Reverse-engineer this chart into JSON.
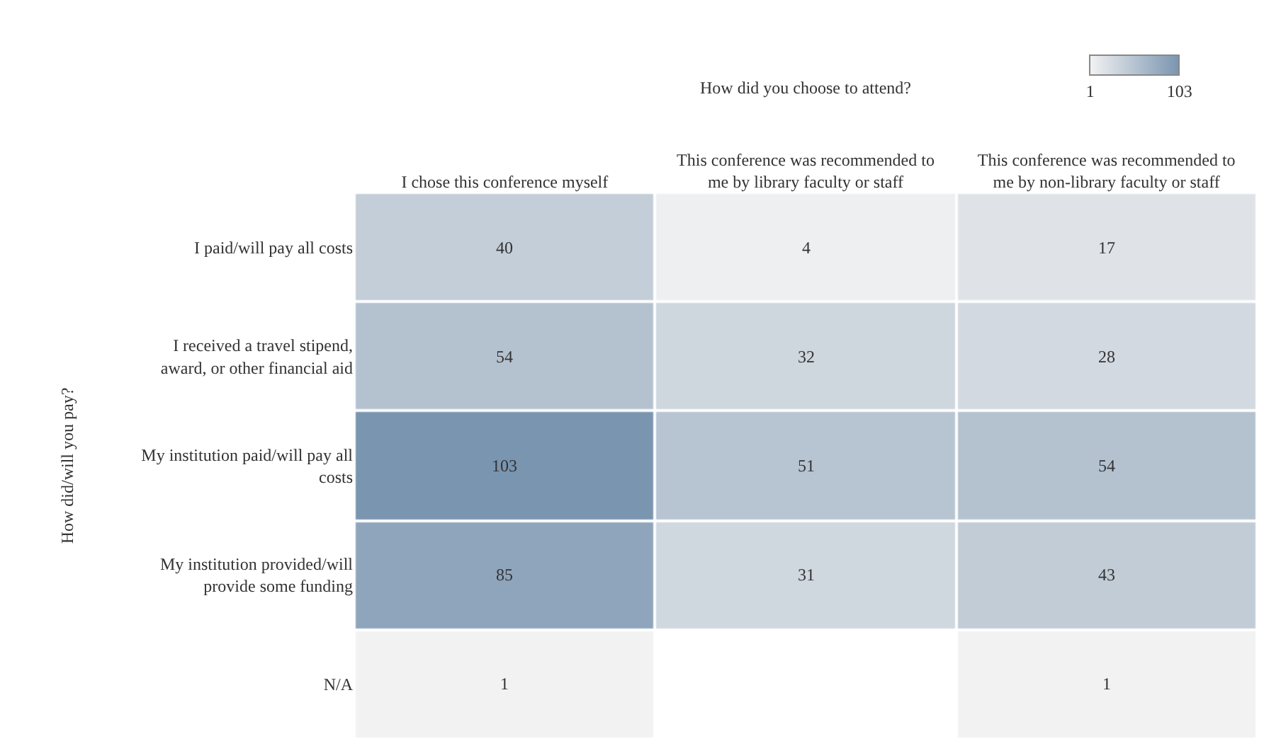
{
  "chart_data": {
    "type": "heatmap",
    "xlabel": "How did you choose to attend?",
    "ylabel": "How did/will you pay?",
    "categories": [
      "I chose this conference myself",
      "This conference was recommended to me by library faculty or staff",
      "This conference was recommended to me by non-library faculty or staff"
    ],
    "y_categories": [
      "I paid/will pay all costs",
      "I received a travel stipend, award, or other financial aid",
      "My institution paid/will pay all costs",
      "My institution provided/will provide some funding",
      "N/A"
    ],
    "cells": [
      [
        40,
        4,
        17
      ],
      [
        54,
        32,
        28
      ],
      [
        103,
        51,
        54
      ],
      [
        85,
        31,
        43
      ],
      [
        1,
        null,
        1
      ]
    ],
    "clim": [
      1,
      103
    ],
    "cticks": [
      1,
      103
    ],
    "data_labels": true
  }
}
